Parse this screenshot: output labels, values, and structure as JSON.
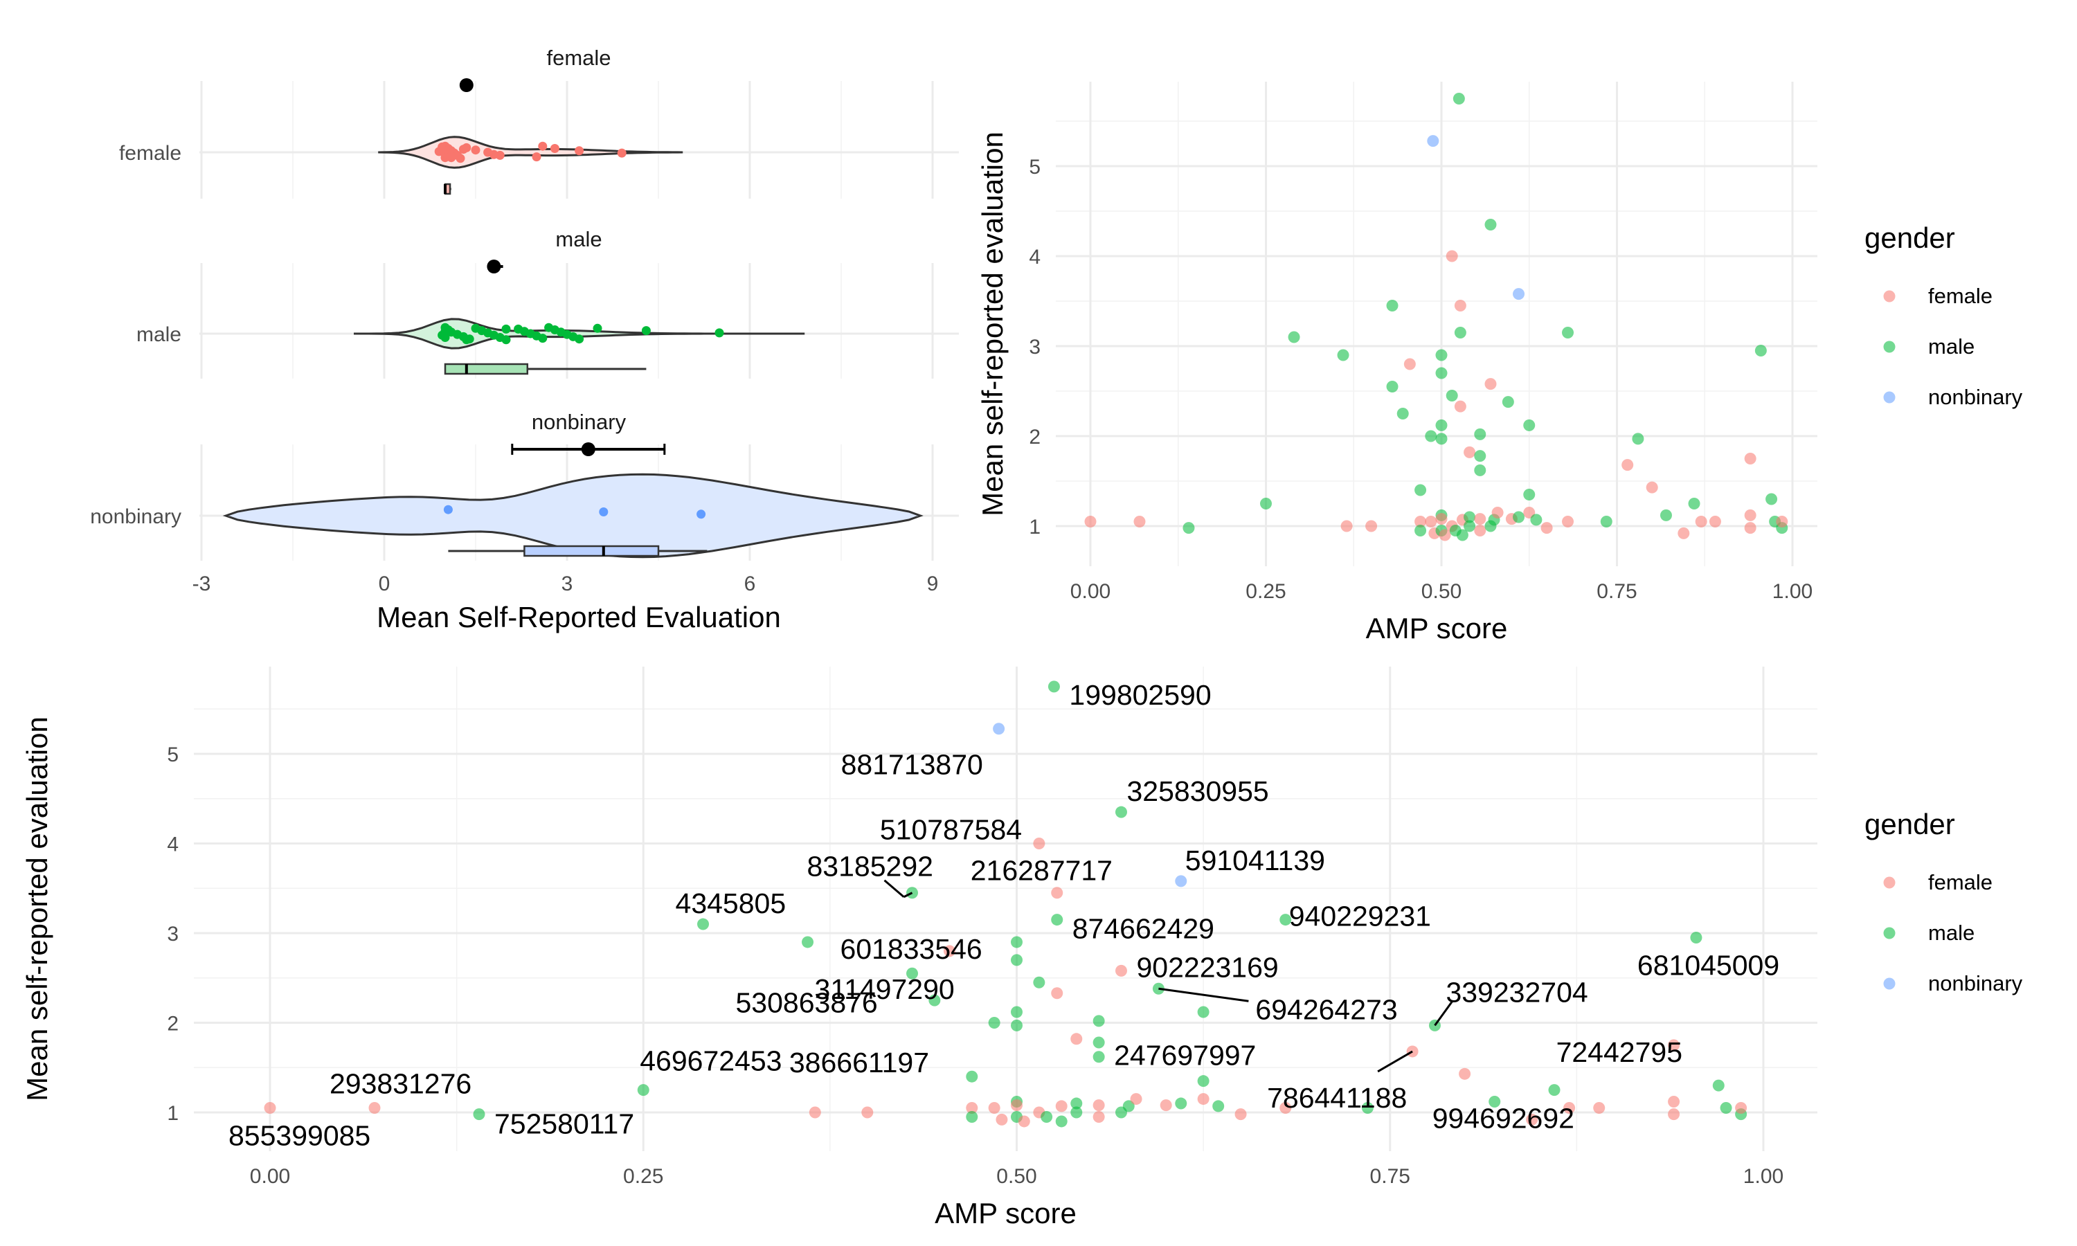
{
  "colors": {
    "female": "#F8766D",
    "male": "#00BA38",
    "nonbinary": "#619CFF"
  },
  "chart_data": [
    {
      "type": "violin",
      "panel": "raincloud",
      "facets": [
        "female",
        "male",
        "nonbinary"
      ],
      "categories": [
        "female",
        "male",
        "nonbinary"
      ],
      "xlabel": "Mean Self-Reported Evaluation",
      "xticks": [
        "-3",
        "0",
        "3",
        "6",
        "9"
      ],
      "xlim": [
        -3,
        9.7
      ],
      "grid": true,
      "groups": [
        {
          "name": "female",
          "points": [
            1,
            1.05,
            1.1,
            1.15,
            1.2,
            1.0,
            0.95,
            1.3,
            0.9,
            1.0,
            1.1,
            1.25,
            1.35,
            1.5,
            1.7,
            1.8,
            2.5,
            2.6,
            2.8,
            3.2,
            3.9,
            1.9,
            1.1,
            1.0,
            0.95
          ],
          "mean": 1.35,
          "ci": [
            1.3,
            1.45
          ],
          "box": {
            "min": 0.98,
            "q1": 1.0,
            "median": 1.0,
            "q3": 1.08,
            "max": 1.1
          },
          "violin_range": [
            -0.1,
            4.9
          ],
          "violin_mode": 1.1
        },
        {
          "name": "male",
          "points": [
            1,
            1.05,
            1.1,
            1.2,
            1.3,
            1.4,
            1.5,
            1.6,
            1.7,
            1.8,
            1.9,
            2.0,
            2.2,
            2.3,
            2.4,
            2.5,
            2.6,
            2.7,
            2.8,
            2.9,
            3.0,
            3.1,
            3.2,
            3.5,
            4.3,
            5.5,
            0.95,
            1.0,
            1.35,
            2.0,
            1.0,
            1.0
          ],
          "mean": 1.8,
          "ci": [
            1.7,
            1.95
          ],
          "box": {
            "min": 1.0,
            "q1": 1.0,
            "median": 1.35,
            "q3": 2.35,
            "max": 4.3
          },
          "violin_range": [
            -0.5,
            6.9
          ],
          "violin_mode": 1.1
        },
        {
          "name": "nonbinary",
          "points": [
            1.05,
            3.6,
            5.2
          ],
          "mean": 3.35,
          "ci": [
            2.1,
            4.6
          ],
          "box": {
            "min": 1.05,
            "q1": 2.3,
            "median": 3.6,
            "q3": 4.5,
            "max": 5.3
          },
          "violin_range": [
            -2.6,
            8.8
          ],
          "violin_mode": 4.5
        }
      ]
    },
    {
      "type": "scatter",
      "panel": "top-right",
      "xlabel": "AMP score",
      "ylabel": "Mean self-reported evaluation",
      "xlim": [
        -0.04,
        1.04
      ],
      "ylim": [
        0.8,
        5.8
      ],
      "xticks": [
        "0.00",
        "0.25",
        "0.50",
        "0.75",
        "1.00"
      ],
      "yticks": [
        "1",
        "2",
        "3",
        "4",
        "5"
      ],
      "grid": true,
      "legend": {
        "title": "gender",
        "position": "right",
        "items": [
          "female",
          "male",
          "nonbinary"
        ]
      }
    },
    {
      "type": "scatter",
      "panel": "bottom",
      "xlabel": "AMP score",
      "ylabel": "Mean self-reported evaluation",
      "xlim": [
        -0.04,
        1.04
      ],
      "ylim": [
        0.8,
        5.8
      ],
      "xticks": [
        "0.00",
        "0.25",
        "0.50",
        "0.75",
        "1.00"
      ],
      "yticks": [
        "1",
        "2",
        "3",
        "4",
        "5"
      ],
      "grid": true,
      "legend": {
        "title": "gender",
        "position": "right",
        "items": [
          "female",
          "male",
          "nonbinary"
        ]
      }
    }
  ],
  "points": [
    {
      "x": 0.0,
      "y": 1.05,
      "g": "female",
      "id": "855399085"
    },
    {
      "x": 0.07,
      "y": 1.05,
      "g": "female",
      "id": "293831276"
    },
    {
      "x": 0.14,
      "y": 0.98,
      "g": "male",
      "id": "752580117"
    },
    {
      "x": 0.25,
      "y": 1.25,
      "g": "male",
      "id": "469672453"
    },
    {
      "x": 0.29,
      "y": 3.1,
      "g": "male",
      "id": "4345805"
    },
    {
      "x": 0.36,
      "y": 2.9,
      "g": "male",
      "id": "311497290"
    },
    {
      "x": 0.43,
      "y": 3.45,
      "g": "male",
      "id": "83185292"
    },
    {
      "x": 0.43,
      "y": 2.55,
      "g": "male",
      "id": "530863876"
    },
    {
      "x": 0.445,
      "y": 2.25,
      "g": "male",
      "id": "386661197"
    },
    {
      "x": 0.455,
      "y": 2.8,
      "g": "female",
      "id": ""
    },
    {
      "x": 0.485,
      "y": 2.0,
      "g": "male",
      "id": ""
    },
    {
      "x": 0.488,
      "y": 5.28,
      "g": "nonbinary",
      "id": "881713870"
    },
    {
      "x": 0.5,
      "y": 2.9,
      "g": "male",
      "id": "601833546"
    },
    {
      "x": 0.5,
      "y": 2.7,
      "g": "male",
      "id": ""
    },
    {
      "x": 0.5,
      "y": 2.12,
      "g": "male",
      "id": ""
    },
    {
      "x": 0.5,
      "y": 1.97,
      "g": "male",
      "id": ""
    },
    {
      "x": 0.515,
      "y": 4.0,
      "g": "female",
      "id": "510787584"
    },
    {
      "x": 0.515,
      "y": 2.45,
      "g": "male",
      "id": ""
    },
    {
      "x": 0.525,
      "y": 5.75,
      "g": "male",
      "id": "199802590"
    },
    {
      "x": 0.527,
      "y": 3.45,
      "g": "female",
      "id": "216287717"
    },
    {
      "x": 0.527,
      "y": 3.15,
      "g": "male",
      "id": "874662429"
    },
    {
      "x": 0.527,
      "y": 2.33,
      "g": "female",
      "id": ""
    },
    {
      "x": 0.54,
      "y": 1.82,
      "g": "female",
      "id": ""
    },
    {
      "x": 0.555,
      "y": 2.02,
      "g": "male",
      "id": ""
    },
    {
      "x": 0.555,
      "y": 1.78,
      "g": "male",
      "id": ""
    },
    {
      "x": 0.555,
      "y": 1.62,
      "g": "male",
      "id": "247697997"
    },
    {
      "x": 0.57,
      "y": 4.35,
      "g": "male",
      "id": "325830955"
    },
    {
      "x": 0.57,
      "y": 2.58,
      "g": "female",
      "id": "902223169"
    },
    {
      "x": 0.595,
      "y": 2.38,
      "g": "male",
      "id": "694264273"
    },
    {
      "x": 0.61,
      "y": 3.58,
      "g": "nonbinary",
      "id": "591041139"
    },
    {
      "x": 0.625,
      "y": 2.12,
      "g": "male",
      "id": ""
    },
    {
      "x": 0.625,
      "y": 1.35,
      "g": "male",
      "id": ""
    },
    {
      "x": 0.68,
      "y": 3.15,
      "g": "male",
      "id": "940229231"
    },
    {
      "x": 0.765,
      "y": 1.68,
      "g": "female",
      "id": "786441188"
    },
    {
      "x": 0.78,
      "y": 1.97,
      "g": "male",
      "id": "339232704"
    },
    {
      "x": 0.8,
      "y": 1.43,
      "g": "female",
      "id": ""
    },
    {
      "x": 0.82,
      "y": 1.12,
      "g": "male",
      "id": "994692692"
    },
    {
      "x": 0.86,
      "y": 1.25,
      "g": "male",
      "id": ""
    },
    {
      "x": 0.94,
      "y": 1.75,
      "g": "female",
      "id": "72442795"
    },
    {
      "x": 0.955,
      "y": 2.95,
      "g": "male",
      "id": "681045009"
    },
    {
      "x": 0.97,
      "y": 1.3,
      "g": "male",
      "id": ""
    },
    {
      "x": 0.365,
      "y": 1.0,
      "g": "female",
      "id": ""
    },
    {
      "x": 0.4,
      "y": 1.0,
      "g": "female",
      "id": ""
    },
    {
      "x": 0.47,
      "y": 1.4,
      "g": "male",
      "id": ""
    },
    {
      "x": 0.47,
      "y": 1.05,
      "g": "female",
      "id": ""
    },
    {
      "x": 0.47,
      "y": 0.95,
      "g": "male",
      "id": ""
    },
    {
      "x": 0.485,
      "y": 1.05,
      "g": "female",
      "id": ""
    },
    {
      "x": 0.49,
      "y": 0.92,
      "g": "female",
      "id": ""
    },
    {
      "x": 0.5,
      "y": 1.12,
      "g": "male",
      "id": ""
    },
    {
      "x": 0.5,
      "y": 1.08,
      "g": "female",
      "id": ""
    },
    {
      "x": 0.5,
      "y": 0.95,
      "g": "male",
      "id": ""
    },
    {
      "x": 0.505,
      "y": 0.9,
      "g": "female",
      "id": ""
    },
    {
      "x": 0.515,
      "y": 1.0,
      "g": "female",
      "id": ""
    },
    {
      "x": 0.52,
      "y": 0.95,
      "g": "male",
      "id": ""
    },
    {
      "x": 0.53,
      "y": 1.07,
      "g": "female",
      "id": ""
    },
    {
      "x": 0.53,
      "y": 0.9,
      "g": "male",
      "id": ""
    },
    {
      "x": 0.54,
      "y": 1.1,
      "g": "male",
      "id": ""
    },
    {
      "x": 0.54,
      "y": 1.0,
      "g": "male",
      "id": ""
    },
    {
      "x": 0.555,
      "y": 1.08,
      "g": "female",
      "id": ""
    },
    {
      "x": 0.555,
      "y": 0.95,
      "g": "female",
      "id": ""
    },
    {
      "x": 0.57,
      "y": 1.0,
      "g": "male",
      "id": ""
    },
    {
      "x": 0.575,
      "y": 1.07,
      "g": "male",
      "id": ""
    },
    {
      "x": 0.58,
      "y": 1.15,
      "g": "female",
      "id": ""
    },
    {
      "x": 0.6,
      "y": 1.08,
      "g": "female",
      "id": ""
    },
    {
      "x": 0.61,
      "y": 1.1,
      "g": "male",
      "id": ""
    },
    {
      "x": 0.625,
      "y": 1.15,
      "g": "female",
      "id": ""
    },
    {
      "x": 0.635,
      "y": 1.07,
      "g": "male",
      "id": ""
    },
    {
      "x": 0.65,
      "y": 0.98,
      "g": "female",
      "id": ""
    },
    {
      "x": 0.68,
      "y": 1.05,
      "g": "female",
      "id": ""
    },
    {
      "x": 0.735,
      "y": 1.05,
      "g": "male",
      "id": ""
    },
    {
      "x": 0.87,
      "y": 1.05,
      "g": "female",
      "id": ""
    },
    {
      "x": 0.89,
      "y": 1.05,
      "g": "female",
      "id": ""
    },
    {
      "x": 0.845,
      "y": 0.92,
      "g": "female",
      "id": ""
    },
    {
      "x": 0.94,
      "y": 1.12,
      "g": "female",
      "id": ""
    },
    {
      "x": 0.94,
      "y": 0.98,
      "g": "female",
      "id": ""
    },
    {
      "x": 0.975,
      "y": 1.05,
      "g": "male",
      "id": ""
    },
    {
      "x": 0.985,
      "y": 0.98,
      "g": "male",
      "id": ""
    },
    {
      "x": 0.985,
      "y": 1.05,
      "g": "female",
      "id": ""
    }
  ],
  "labels": {
    "strip_female": "female",
    "strip_male": "male",
    "strip_nonbinary": "nonbinary",
    "cat_female": "female",
    "cat_male": "male",
    "cat_nonbinary": "nonbinary",
    "raincloud_xlabel": "Mean Self-Reported Evaluation",
    "amp_xlabel": "AMP score",
    "eval_ylabel": "Mean self-reported evaluation",
    "legend_title": "gender",
    "legend_female": "female",
    "legend_male": "male",
    "legend_nonbinary": "nonbinary"
  }
}
